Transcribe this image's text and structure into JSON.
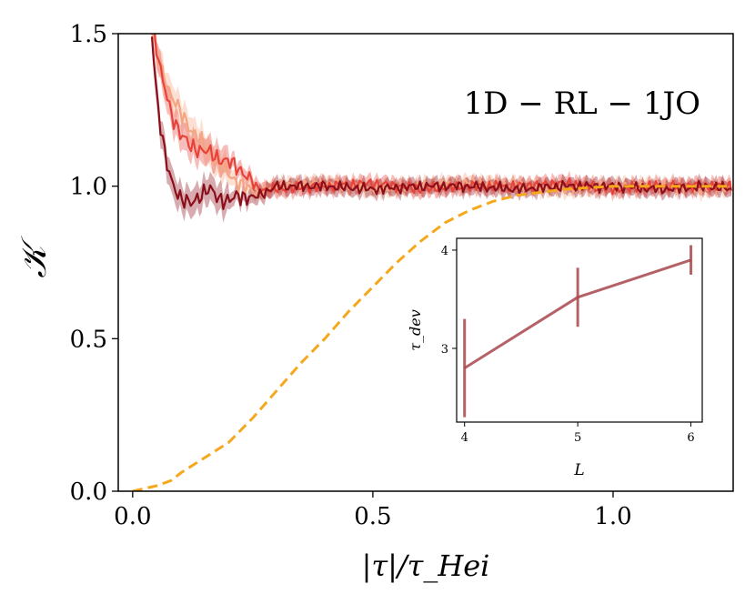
{
  "chart_data": [
    {
      "type": "line",
      "title": "",
      "annotation": "1D − RL − 1JO",
      "xlabel": "|τ|/τ_Hei",
      "ylabel": "𝒦",
      "xlim": [
        -0.03,
        1.25
      ],
      "ylim": [
        0.0,
        1.5
      ],
      "xticks": [
        "0.0",
        "0.5",
        "1.0"
      ],
      "xtick_values": [
        0.0,
        0.5,
        1.0
      ],
      "yticks": [
        "0.0",
        "0.5",
        "1.0",
        "1.5"
      ],
      "ytick_values": [
        0.0,
        0.5,
        1.0,
        1.5
      ],
      "grid": false,
      "series": [
        {
          "color": "#f4a582",
          "style": "solid",
          "band": true,
          "x": [
            0.04,
            0.05,
            0.06,
            0.08,
            0.1,
            0.12,
            0.14,
            0.16,
            0.18,
            0.2,
            0.22,
            0.24,
            0.26,
            0.28,
            0.3,
            0.4,
            0.5,
            0.6,
            0.7,
            0.8,
            0.9,
            1.0,
            1.1,
            1.2,
            1.25
          ],
          "values": [
            1.5,
            1.44,
            1.38,
            1.3,
            1.24,
            1.19,
            1.15,
            1.11,
            1.07,
            1.04,
            1.01,
            0.99,
            0.98,
            0.99,
            1.0,
            1.01,
            0.99,
            1.0,
            1.01,
            1.0,
            0.99,
            1.0,
            1.0,
            0.99,
            1.0
          ]
        },
        {
          "color": "#e8433a",
          "style": "solid",
          "band": true,
          "x": [
            0.045,
            0.06,
            0.08,
            0.1,
            0.12,
            0.14,
            0.16,
            0.18,
            0.2,
            0.22,
            0.24,
            0.26,
            0.3,
            0.4,
            0.5,
            0.6,
            0.7,
            0.8,
            0.9,
            1.0,
            1.1,
            1.2,
            1.25
          ],
          "values": [
            1.5,
            1.36,
            1.24,
            1.17,
            1.13,
            1.12,
            1.11,
            1.09,
            1.08,
            1.06,
            1.03,
            0.99,
            0.99,
            1.0,
            1.01,
            0.99,
            1.0,
            1.0,
            1.01,
            0.99,
            1.0,
            1.0,
            1.0
          ]
        },
        {
          "color": "#8b0f1a",
          "style": "solid",
          "band": true,
          "x": [
            0.04,
            0.05,
            0.06,
            0.07,
            0.08,
            0.1,
            0.12,
            0.14,
            0.16,
            0.18,
            0.2,
            0.22,
            0.25,
            0.3,
            0.4,
            0.5,
            0.6,
            0.7,
            0.8,
            0.9,
            1.0,
            1.1,
            1.2,
            1.25
          ],
          "values": [
            1.5,
            1.3,
            1.17,
            1.08,
            1.02,
            0.96,
            0.94,
            0.97,
            0.99,
            0.96,
            0.95,
            0.97,
            0.96,
            1.0,
            1.0,
            0.99,
            1.0,
            1.0,
            0.99,
            1.0,
            1.0,
            0.99,
            1.0,
            0.99
          ]
        },
        {
          "color": "#f5a81e",
          "style": "dashed",
          "band": false,
          "x": [
            0.0,
            0.05,
            0.08,
            0.1,
            0.12,
            0.15,
            0.2,
            0.25,
            0.3,
            0.35,
            0.4,
            0.45,
            0.5,
            0.55,
            0.6,
            0.65,
            0.7,
            0.75,
            0.8,
            0.85,
            0.9,
            1.0,
            1.1,
            1.2,
            1.25
          ],
          "values": [
            0.0,
            0.018,
            0.035,
            0.06,
            0.08,
            0.11,
            0.16,
            0.24,
            0.33,
            0.42,
            0.5,
            0.59,
            0.67,
            0.75,
            0.82,
            0.88,
            0.92,
            0.95,
            0.97,
            0.98,
            0.99,
            1.0,
            1.0,
            1.0,
            1.0
          ]
        }
      ]
    },
    {
      "type": "line",
      "title": "",
      "xlabel": "L",
      "ylabel": "τ_dev",
      "xlim": [
        3.93,
        6.1
      ],
      "ylim": [
        2.25,
        4.12
      ],
      "xticks": [
        "4",
        "5",
        "6"
      ],
      "xtick_values": [
        4,
        5,
        6
      ],
      "yticks": [
        "3",
        "4"
      ],
      "ytick_values": [
        3,
        4
      ],
      "grid": false,
      "series": [
        {
          "color": "#a8474c",
          "x": [
            4,
            5,
            6
          ],
          "values": [
            2.8,
            3.52,
            3.9
          ],
          "errors": [
            0.5,
            0.3,
            0.15
          ]
        }
      ]
    }
  ]
}
